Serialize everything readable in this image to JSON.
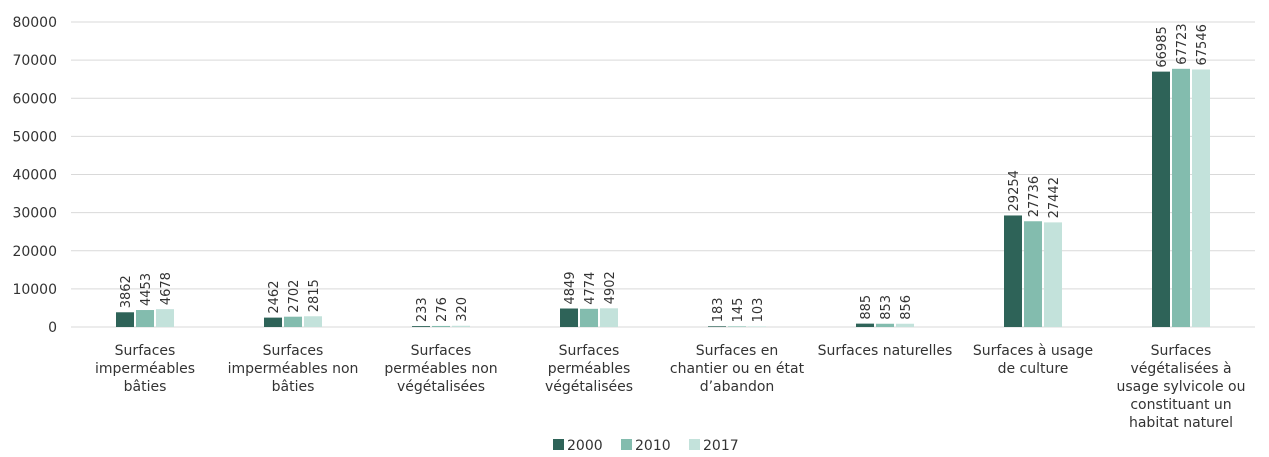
{
  "chart_data": {
    "type": "bar",
    "categories": [
      "Surfaces imperméables bâties",
      "Surfaces imperméables non bâties",
      "Surfaces perméables non végétalisées",
      "Surfaces perméables végétalisées",
      "Surfaces en chantier ou en état d’abandon",
      "Surfaces naturelles",
      "Surfaces à usage de culture",
      "Surfaces végétalisées à usage sylvicole ou constituant un habitat naturel"
    ],
    "category_lines": [
      [
        "Surfaces",
        "imperméables",
        "bâties"
      ],
      [
        "Surfaces",
        "imperméables non",
        "bâties"
      ],
      [
        "Surfaces",
        "perméables non",
        "végétalisées"
      ],
      [
        "Surfaces",
        "perméables",
        "végétalisées"
      ],
      [
        "Surfaces en",
        "chantier ou en état",
        "d’abandon"
      ],
      [
        "Surfaces naturelles"
      ],
      [
        "Surfaces à usage",
        "de culture"
      ],
      [
        "Surfaces",
        "végétalisées à",
        "usage sylvicole ou",
        "constituant un",
        "habitat naturel"
      ]
    ],
    "series": [
      {
        "name": "2000",
        "color": "#2e6358",
        "values": [
          3862,
          2462,
          233,
          4849,
          183,
          885,
          29254,
          66985
        ]
      },
      {
        "name": "2010",
        "color": "#83bcae",
        "values": [
          4453,
          2702,
          276,
          4774,
          145,
          853,
          27736,
          67723
        ]
      },
      {
        "name": "2017",
        "color": "#c3e2db",
        "values": [
          4678,
          2815,
          320,
          4902,
          103,
          856,
          27442,
          67546
        ]
      }
    ],
    "yticks": [
      "0",
      "10000",
      "20000",
      "30000",
      "40000",
      "50000",
      "60000",
      "70000",
      "80000"
    ],
    "ylim": [
      0,
      80000
    ],
    "grid": true,
    "legend_position": "bottom-center",
    "data_labels": true
  }
}
